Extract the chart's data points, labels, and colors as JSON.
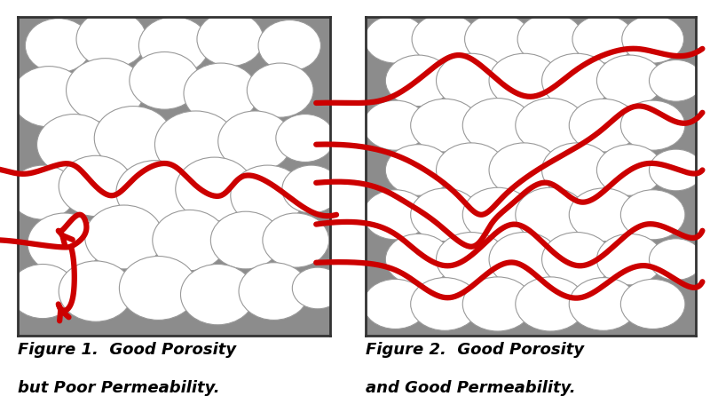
{
  "bg_color": "#8c8c8c",
  "circle_color": "#ffffff",
  "circle_edge": "#999999",
  "arrow_color": "#cc0000",
  "fig_bg": "#ffffff",
  "caption1_line1": "Figure 1.  Good Porosity",
  "caption1_line2": "but Poor Permeability.",
  "caption2_line1": "Figure 2.  Good Porosity",
  "caption2_line2": "and Good Permeability.",
  "caption_fontsize": 13,
  "lw_arrow": 4.5,
  "lw_border": 2.0,
  "circles1": [
    [
      0.13,
      0.91,
      0.085
    ],
    [
      0.3,
      0.93,
      0.09
    ],
    [
      0.5,
      0.91,
      0.09
    ],
    [
      0.68,
      0.93,
      0.085
    ],
    [
      0.87,
      0.91,
      0.08
    ],
    [
      0.1,
      0.75,
      0.095
    ],
    [
      0.28,
      0.77,
      0.1
    ],
    [
      0.47,
      0.8,
      0.09
    ],
    [
      0.65,
      0.76,
      0.095
    ],
    [
      0.84,
      0.77,
      0.085
    ],
    [
      0.18,
      0.6,
      0.095
    ],
    [
      0.37,
      0.62,
      0.1
    ],
    [
      0.57,
      0.6,
      0.105
    ],
    [
      0.76,
      0.61,
      0.095
    ],
    [
      0.92,
      0.62,
      0.075
    ],
    [
      0.08,
      0.45,
      0.085
    ],
    [
      0.25,
      0.47,
      0.095
    ],
    [
      0.44,
      0.45,
      0.1
    ],
    [
      0.63,
      0.46,
      0.1
    ],
    [
      0.8,
      0.44,
      0.095
    ],
    [
      0.94,
      0.46,
      0.075
    ],
    [
      0.15,
      0.29,
      0.095
    ],
    [
      0.34,
      0.31,
      0.1
    ],
    [
      0.55,
      0.3,
      0.095
    ],
    [
      0.73,
      0.3,
      0.09
    ],
    [
      0.89,
      0.3,
      0.085
    ],
    [
      0.08,
      0.14,
      0.085
    ],
    [
      0.25,
      0.14,
      0.095
    ],
    [
      0.45,
      0.15,
      0.1
    ],
    [
      0.64,
      0.13,
      0.095
    ],
    [
      0.82,
      0.14,
      0.09
    ],
    [
      0.96,
      0.15,
      0.065
    ]
  ],
  "circles2": [
    [
      0.09,
      0.93,
      0.075
    ],
    [
      0.24,
      0.93,
      0.08
    ],
    [
      0.4,
      0.93,
      0.08
    ],
    [
      0.56,
      0.93,
      0.08
    ],
    [
      0.72,
      0.93,
      0.075
    ],
    [
      0.87,
      0.93,
      0.075
    ],
    [
      0.16,
      0.8,
      0.08
    ],
    [
      0.32,
      0.8,
      0.085
    ],
    [
      0.48,
      0.8,
      0.085
    ],
    [
      0.64,
      0.8,
      0.085
    ],
    [
      0.8,
      0.8,
      0.08
    ],
    [
      0.94,
      0.8,
      0.065
    ],
    [
      0.09,
      0.66,
      0.078
    ],
    [
      0.24,
      0.66,
      0.083
    ],
    [
      0.4,
      0.66,
      0.085
    ],
    [
      0.56,
      0.66,
      0.085
    ],
    [
      0.72,
      0.66,
      0.083
    ],
    [
      0.87,
      0.66,
      0.078
    ],
    [
      0.16,
      0.52,
      0.08
    ],
    [
      0.32,
      0.52,
      0.085
    ],
    [
      0.48,
      0.52,
      0.085
    ],
    [
      0.64,
      0.52,
      0.085
    ],
    [
      0.8,
      0.52,
      0.08
    ],
    [
      0.94,
      0.52,
      0.065
    ],
    [
      0.09,
      0.38,
      0.078
    ],
    [
      0.24,
      0.38,
      0.083
    ],
    [
      0.4,
      0.38,
      0.085
    ],
    [
      0.56,
      0.38,
      0.085
    ],
    [
      0.72,
      0.38,
      0.083
    ],
    [
      0.87,
      0.38,
      0.078
    ],
    [
      0.16,
      0.24,
      0.08
    ],
    [
      0.32,
      0.24,
      0.085
    ],
    [
      0.48,
      0.24,
      0.085
    ],
    [
      0.64,
      0.24,
      0.085
    ],
    [
      0.8,
      0.24,
      0.08
    ],
    [
      0.94,
      0.24,
      0.065
    ],
    [
      0.09,
      0.1,
      0.078
    ],
    [
      0.24,
      0.1,
      0.083
    ],
    [
      0.4,
      0.1,
      0.085
    ],
    [
      0.56,
      0.1,
      0.085
    ],
    [
      0.72,
      0.1,
      0.083
    ],
    [
      0.87,
      0.1,
      0.078
    ]
  ]
}
